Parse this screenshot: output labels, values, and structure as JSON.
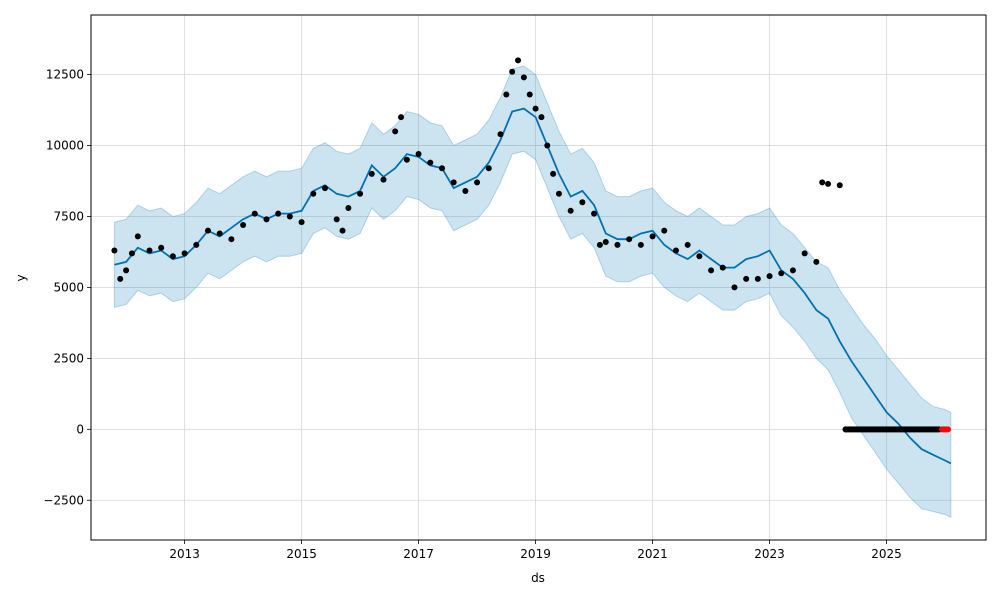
{
  "chart_data": {
    "type": "line",
    "title": "",
    "xlabel": "ds",
    "ylabel": "y",
    "xlim": [
      2011.4,
      2026.7
    ],
    "ylim": [
      -3900,
      14600
    ],
    "x_ticks": [
      2013,
      2015,
      2017,
      2019,
      2021,
      2023,
      2025
    ],
    "x_tick_labels": [
      "2013",
      "2015",
      "2017",
      "2019",
      "2021",
      "2023",
      "2025"
    ],
    "y_ticks": [
      -2500,
      0,
      2500,
      5000,
      7500,
      10000,
      12500
    ],
    "y_tick_labels": [
      "−2500",
      "0",
      "2500",
      "5000",
      "7500",
      "10000",
      "12500"
    ],
    "grid": true,
    "series": [
      {
        "kind": "observed-points",
        "color": "#000000",
        "x": [
          2011.8,
          2011.9,
          2012.0,
          2012.1,
          2012.2,
          2012.4,
          2012.6,
          2012.8,
          2013.0,
          2013.2,
          2013.4,
          2013.6,
          2013.8,
          2014.0,
          2014.2,
          2014.4,
          2014.6,
          2014.8,
          2015.0,
          2015.2,
          2015.4,
          2015.6,
          2015.7,
          2015.8,
          2016.0,
          2016.2,
          2016.4,
          2016.6,
          2016.7,
          2016.8,
          2017.0,
          2017.2,
          2017.4,
          2017.6,
          2017.8,
          2018.0,
          2018.2,
          2018.4,
          2018.5,
          2018.6,
          2018.7,
          2018.8,
          2018.9,
          2019.0,
          2019.1,
          2019.2,
          2019.3,
          2019.4,
          2019.6,
          2019.8,
          2020.0,
          2020.1,
          2020.2,
          2020.4,
          2020.6,
          2020.8,
          2021.0,
          2021.2,
          2021.4,
          2021.6,
          2021.8,
          2022.0,
          2022.2,
          2022.4,
          2022.6,
          2022.8,
          2023.0,
          2023.2,
          2023.4,
          2023.6,
          2023.8,
          2023.9,
          2024.0,
          2024.2,
          2024.3
        ],
        "y": [
          6300,
          5300,
          5600,
          6200,
          6800,
          6300,
          6400,
          6100,
          6200,
          6500,
          7000,
          6900,
          6700,
          7200,
          7600,
          7400,
          7600,
          7500,
          7300,
          8300,
          8500,
          7400,
          7000,
          7800,
          8300,
          9000,
          8800,
          10500,
          11000,
          9500,
          9700,
          9400,
          9200,
          8700,
          8400,
          8700,
          9200,
          10400,
          11800,
          12600,
          13000,
          12400,
          11800,
          11300,
          11000,
          10000,
          9000,
          8300,
          7700,
          8000,
          7600,
          6500,
          6600,
          6500,
          6700,
          6500,
          6800,
          7000,
          6300,
          6500,
          6100,
          5600,
          5700,
          5000,
          5300,
          5300,
          5400,
          5500,
          5600,
          6200,
          5900,
          8700,
          8650,
          8600,
          0
        ]
      },
      {
        "kind": "observed-zeros",
        "color": "#000000",
        "x_range": [
          2024.3,
          2025.9
        ],
        "y": 0
      },
      {
        "kind": "last-observations",
        "color": "#ff0000",
        "x_range": [
          2025.95,
          2026.05
        ],
        "y": 0
      },
      {
        "kind": "forecast",
        "color": "#0072b2",
        "x": [
          2011.8,
          2012.0,
          2012.2,
          2012.4,
          2012.6,
          2012.8,
          2013.0,
          2013.2,
          2013.4,
          2013.6,
          2013.8,
          2014.0,
          2014.2,
          2014.4,
          2014.6,
          2014.8,
          2015.0,
          2015.2,
          2015.4,
          2015.6,
          2015.8,
          2016.0,
          2016.2,
          2016.4,
          2016.6,
          2016.8,
          2017.0,
          2017.2,
          2017.4,
          2017.6,
          2017.8,
          2018.0,
          2018.2,
          2018.4,
          2018.6,
          2018.8,
          2019.0,
          2019.2,
          2019.4,
          2019.6,
          2019.8,
          2020.0,
          2020.2,
          2020.4,
          2020.6,
          2020.8,
          2021.0,
          2021.2,
          2021.4,
          2021.6,
          2021.8,
          2022.0,
          2022.2,
          2022.4,
          2022.6,
          2022.8,
          2023.0,
          2023.2,
          2023.4,
          2023.6,
          2023.8,
          2024.0,
          2024.2,
          2024.4,
          2024.6,
          2024.8,
          2025.0,
          2025.2,
          2025.4,
          2025.6,
          2025.8,
          2026.0,
          2026.1
        ],
        "y": [
          5800,
          5900,
          6400,
          6200,
          6300,
          6000,
          6100,
          6500,
          7000,
          6800,
          7100,
          7400,
          7600,
          7400,
          7600,
          7600,
          7700,
          8400,
          8600,
          8300,
          8200,
          8400,
          9300,
          8900,
          9200,
          9700,
          9600,
          9300,
          9200,
          8500,
          8700,
          8900,
          9400,
          10200,
          11200,
          11300,
          11000,
          10000,
          9000,
          8200,
          8400,
          7900,
          6900,
          6700,
          6700,
          6900,
          7000,
          6500,
          6200,
          6000,
          6300,
          6000,
          5700,
          5700,
          6000,
          6100,
          6300,
          5600,
          5300,
          4800,
          4200,
          3900,
          3100,
          2400,
          1800,
          1200,
          600,
          200,
          -300,
          -700,
          -900,
          -1100,
          -1200
        ]
      },
      {
        "kind": "uncertainty-interval",
        "color": "#0072b2",
        "opacity": 0.2,
        "x": [
          2011.8,
          2012.0,
          2012.2,
          2012.4,
          2012.6,
          2012.8,
          2013.0,
          2013.2,
          2013.4,
          2013.6,
          2013.8,
          2014.0,
          2014.2,
          2014.4,
          2014.6,
          2014.8,
          2015.0,
          2015.2,
          2015.4,
          2015.6,
          2015.8,
          2016.0,
          2016.2,
          2016.4,
          2016.6,
          2016.8,
          2017.0,
          2017.2,
          2017.4,
          2017.6,
          2017.8,
          2018.0,
          2018.2,
          2018.4,
          2018.6,
          2018.8,
          2019.0,
          2019.2,
          2019.4,
          2019.6,
          2019.8,
          2020.0,
          2020.2,
          2020.4,
          2020.6,
          2020.8,
          2021.0,
          2021.2,
          2021.4,
          2021.6,
          2021.8,
          2022.0,
          2022.2,
          2022.4,
          2022.6,
          2022.8,
          2023.0,
          2023.2,
          2023.4,
          2023.6,
          2023.8,
          2024.0,
          2024.2,
          2024.4,
          2024.6,
          2024.8,
          2025.0,
          2025.2,
          2025.4,
          2025.6,
          2025.8,
          2026.0,
          2026.1
        ],
        "lower": [
          4300,
          4400,
          4900,
          4700,
          4800,
          4500,
          4600,
          5000,
          5500,
          5300,
          5600,
          5900,
          6100,
          5900,
          6100,
          6100,
          6200,
          6900,
          7100,
          6800,
          6700,
          6900,
          7800,
          7400,
          7700,
          8200,
          8100,
          7800,
          7700,
          7000,
          7200,
          7400,
          7900,
          8700,
          9700,
          9800,
          9500,
          8500,
          7500,
          6700,
          6900,
          6400,
          5400,
          5200,
          5200,
          5400,
          5500,
          5000,
          4700,
          4500,
          4800,
          4500,
          4200,
          4200,
          4500,
          4600,
          4800,
          4000,
          3600,
          3100,
          2500,
          2100,
          1300,
          400,
          -200,
          -800,
          -1400,
          -1900,
          -2400,
          -2800,
          -2900,
          -3000,
          -3100
        ],
        "upper": [
          7300,
          7400,
          7900,
          7700,
          7800,
          7500,
          7600,
          8000,
          8500,
          8300,
          8600,
          8900,
          9100,
          8900,
          9100,
          9100,
          9200,
          9900,
          10100,
          9800,
          9700,
          9900,
          10800,
          10400,
          10700,
          11200,
          11100,
          10800,
          10700,
          10000,
          10200,
          10400,
          10900,
          11700,
          12700,
          12800,
          12500,
          11500,
          10500,
          9700,
          9900,
          9400,
          8400,
          8200,
          8200,
          8400,
          8500,
          8000,
          7700,
          7500,
          7800,
          7500,
          7200,
          7200,
          7500,
          7600,
          7800,
          7200,
          6900,
          6400,
          5900,
          5700,
          4900,
          4300,
          3700,
          3200,
          2600,
          2100,
          1600,
          1100,
          800,
          700,
          600
        ]
      }
    ]
  }
}
